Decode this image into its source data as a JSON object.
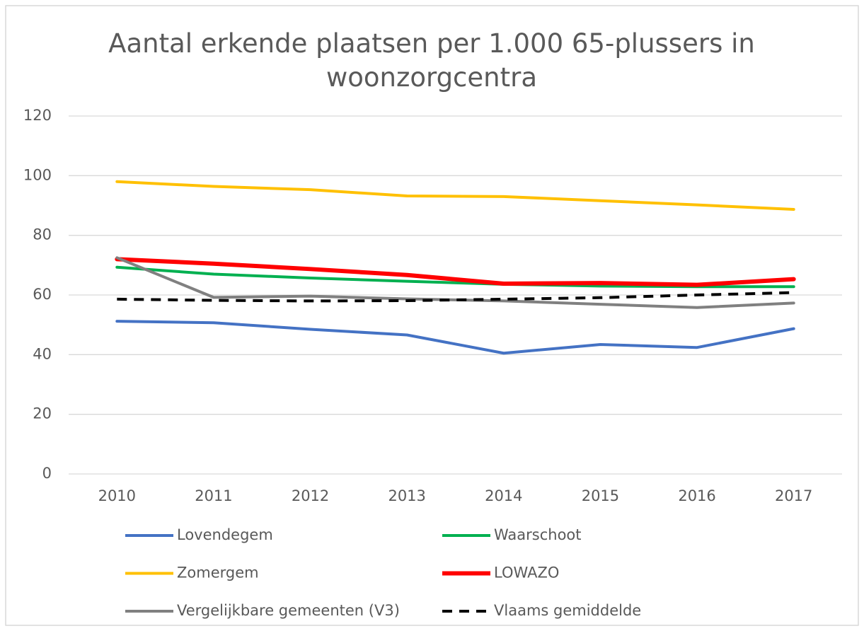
{
  "chart_data": {
    "type": "line",
    "title": "Aantal erkende plaatsen per 1.000 65-plussers in woonzorgcentra",
    "categories": [
      "2010",
      "2011",
      "2012",
      "2013",
      "2014",
      "2015",
      "2016",
      "2017"
    ],
    "series": [
      {
        "name": "Lovendegem",
        "color": "#4472c4",
        "values": [
          51.2,
          50.7,
          48.5,
          46.6,
          40.5,
          43.4,
          42.4,
          48.7
        ]
      },
      {
        "name": "Waarschoot",
        "color": "#00b050",
        "values": [
          69.3,
          67.0,
          65.7,
          64.6,
          63.6,
          63.0,
          62.8,
          62.8
        ]
      },
      {
        "name": "Zomergem",
        "color": "#ffc000",
        "values": [
          98.0,
          96.4,
          95.3,
          93.2,
          93.0,
          91.6,
          90.2,
          88.7
        ]
      },
      {
        "name": "LOWAZO",
        "color": "#ff0000",
        "width": 6,
        "values": [
          72.0,
          70.5,
          68.7,
          66.7,
          63.8,
          64.0,
          63.4,
          65.3
        ]
      },
      {
        "name": "Vergelijkbare gemeenten (V3)",
        "color": "#808080",
        "values": [
          72.5,
          59.2,
          59.6,
          58.7,
          58.0,
          56.9,
          55.8,
          57.3
        ]
      },
      {
        "name": "Vlaams gemiddelde",
        "color": "#000000",
        "dashed": true,
        "values": [
          58.6,
          58.2,
          58.0,
          58.1,
          58.6,
          59.1,
          60.0,
          60.8
        ]
      }
    ],
    "ylim": [
      0,
      120
    ],
    "yticks": [
      0,
      20,
      40,
      60,
      80,
      100,
      120
    ],
    "grid": true,
    "legend": "bottom"
  }
}
